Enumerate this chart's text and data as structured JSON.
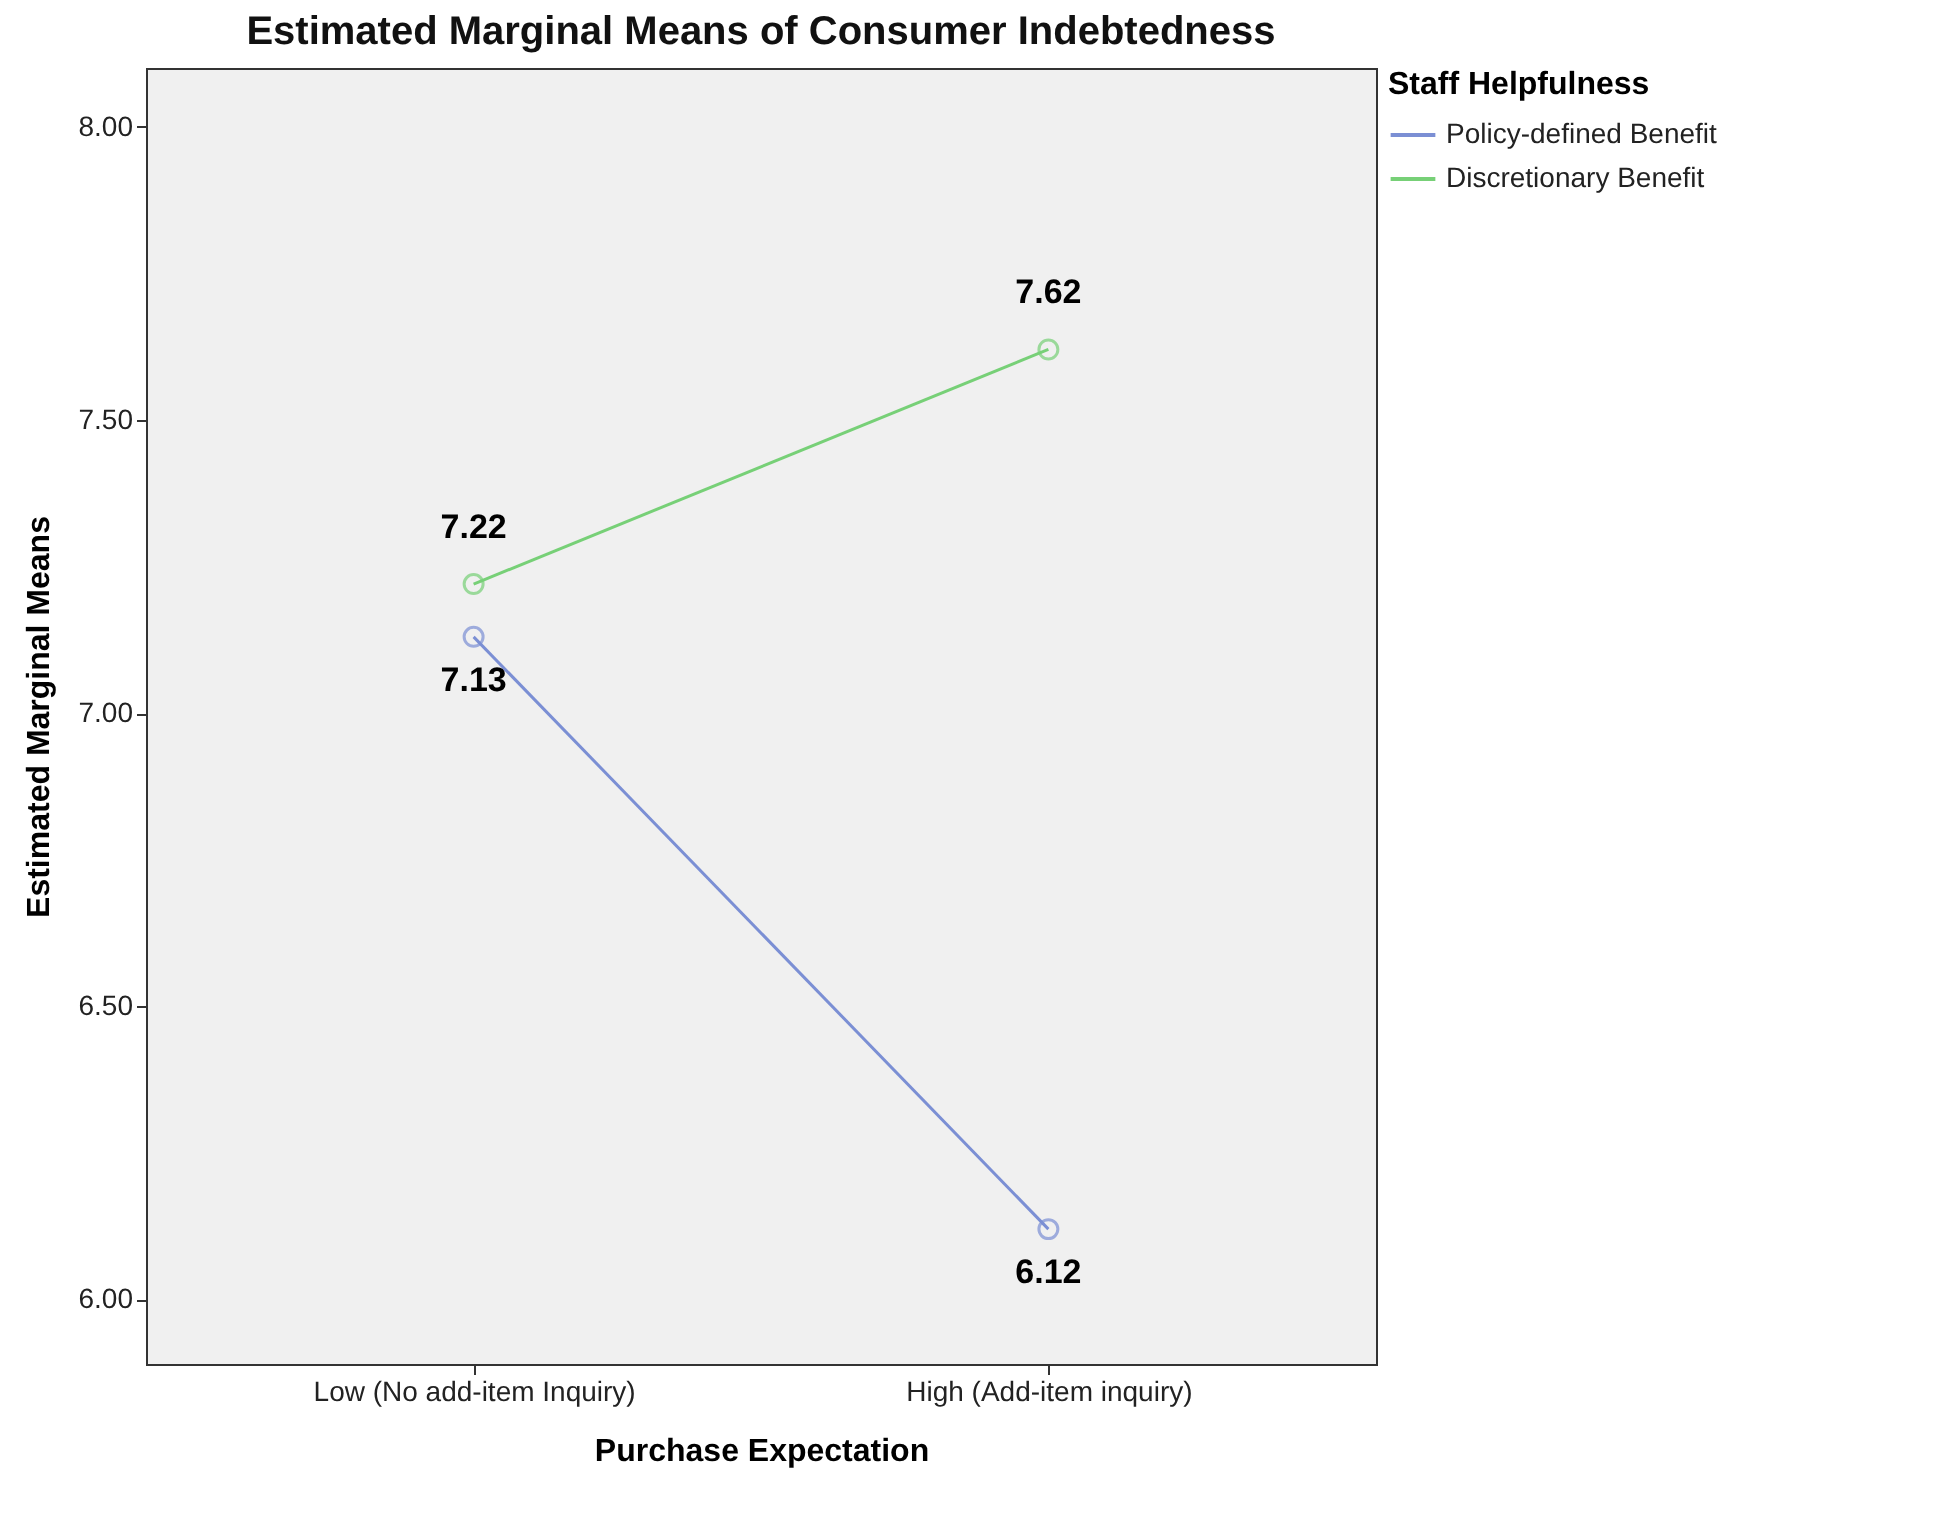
{
  "chart_data": {
    "type": "line",
    "title": "Estimated Marginal Means of Consumer Indebtedness",
    "xlabel": "Purchase Expectation",
    "ylabel": "Estimated Marginal Means",
    "legend_title": "Staff Helpfulness",
    "categories": [
      "Low (No add-item Inquiry)",
      "High (Add-item inquiry)"
    ],
    "series": [
      {
        "name": "Policy-defined Benefit",
        "color": "#7b8fd4",
        "values": [
          7.13,
          6.12
        ]
      },
      {
        "name": "Discretionary Benefit",
        "color": "#77d077",
        "values": [
          7.22,
          7.62
        ]
      }
    ],
    "ylim": [
      5.89,
      8.1
    ],
    "yticks": [
      {
        "value": 6,
        "label": "6.00"
      },
      {
        "value": 6.5,
        "label": "6.50"
      },
      {
        "value": 7,
        "label": "7.00"
      },
      {
        "value": 7.5,
        "label": "7.50"
      },
      {
        "value": 8,
        "label": "8.00"
      }
    ],
    "data_labels": true,
    "marker": "circle",
    "grid": false,
    "legend": "top right"
  }
}
